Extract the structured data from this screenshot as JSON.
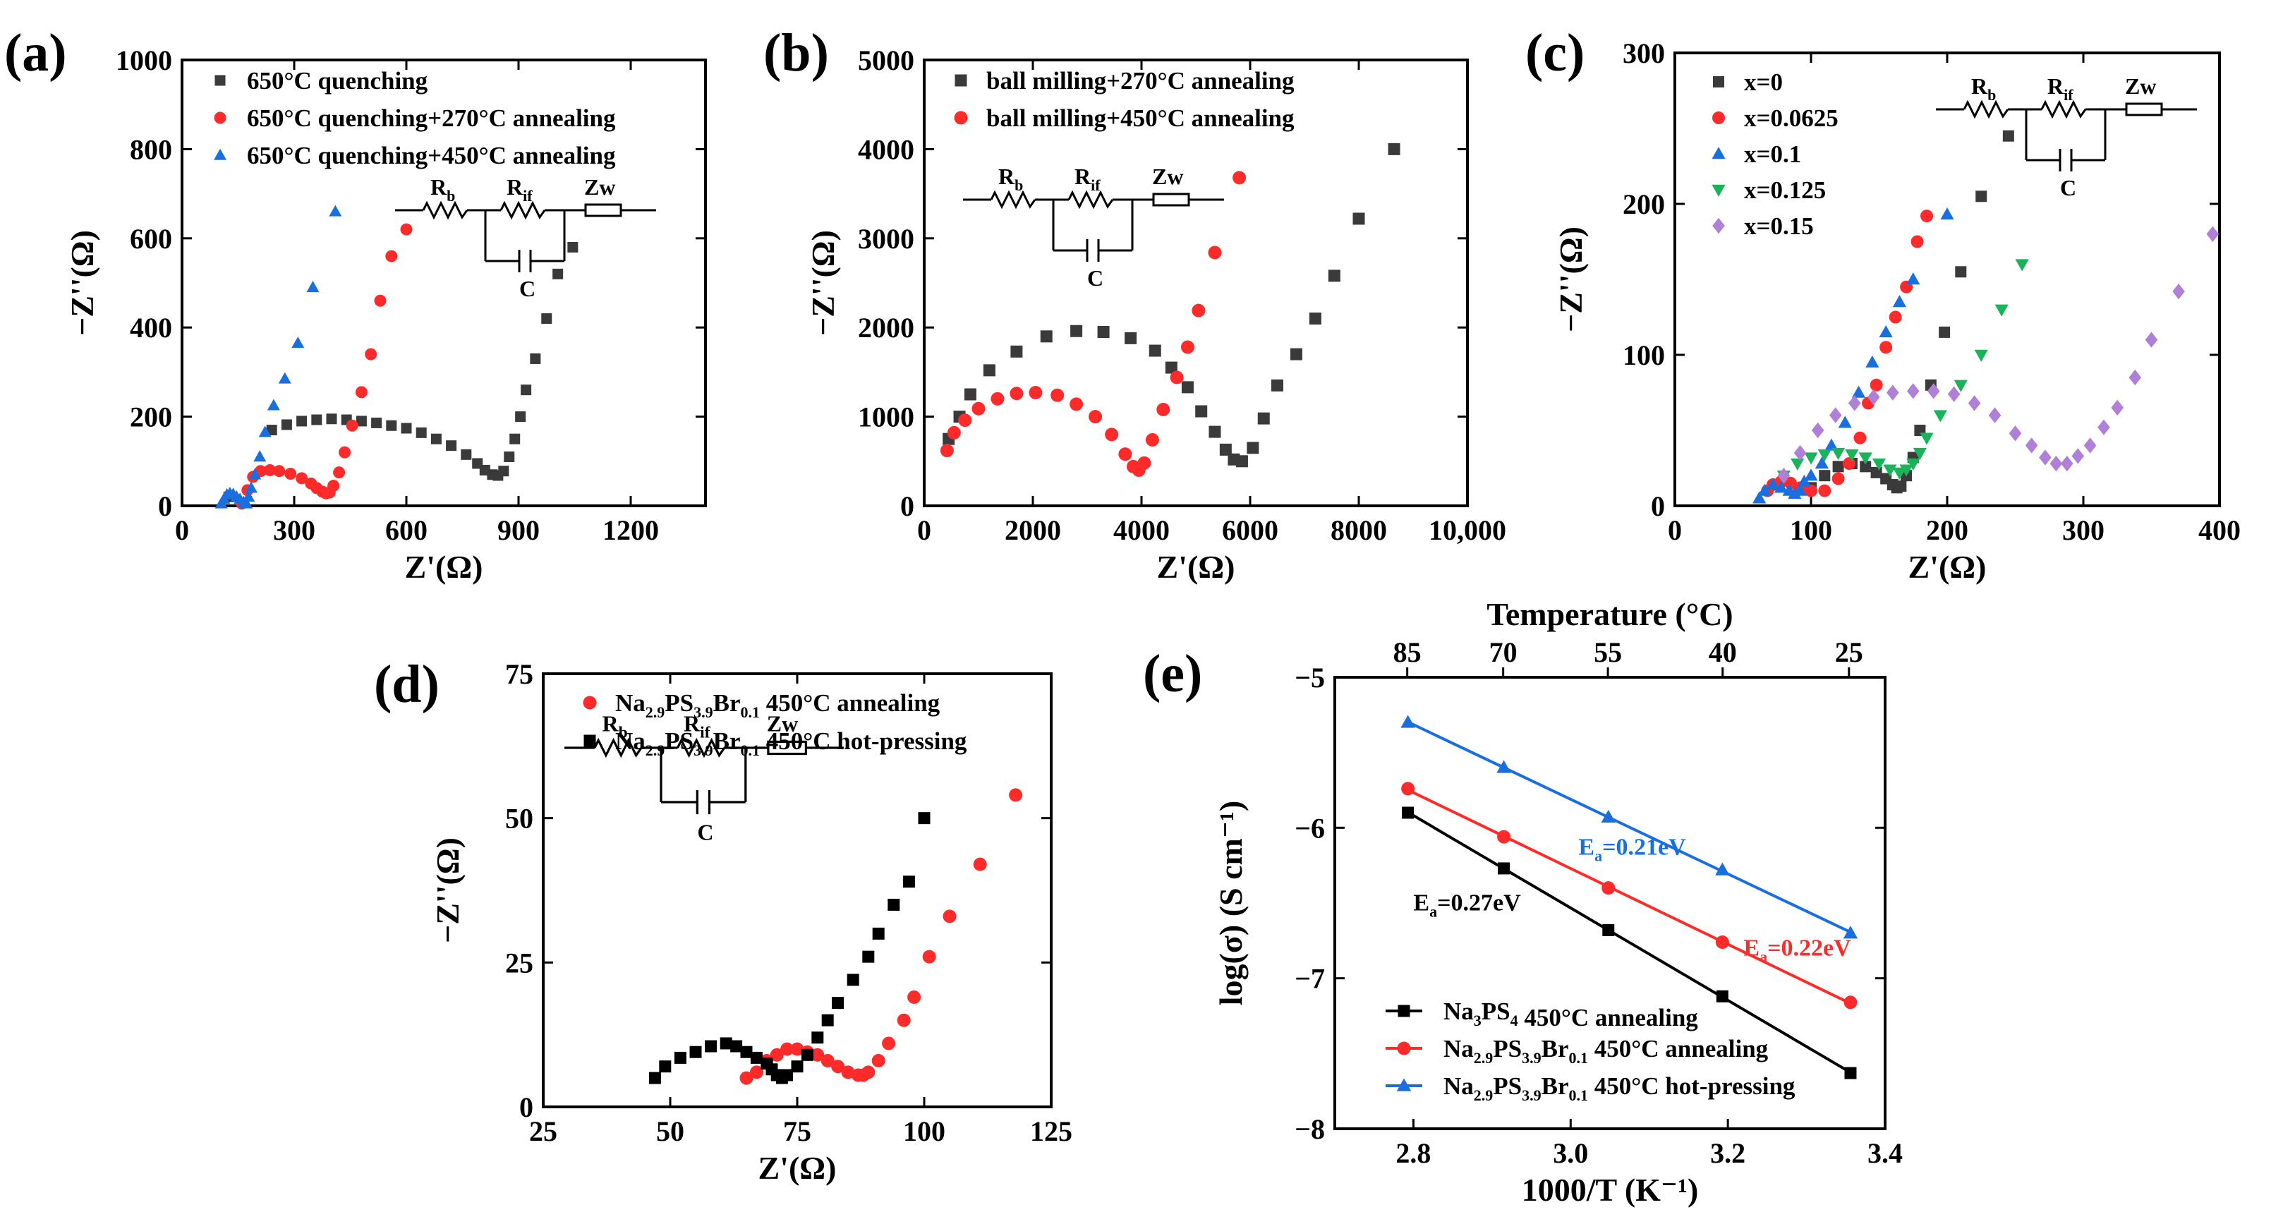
{
  "panels": [
    {
      "letter": "(a)",
      "chart_data": {
        "type": "scatter",
        "xlabel": "Z'(Ω)",
        "ylabel": "−Z''(Ω)",
        "xlim": [
          0,
          1400
        ],
        "ylim": [
          0,
          1000
        ],
        "xticks": [
          0,
          300,
          600,
          900,
          1200
        ],
        "xtick_labels": [
          "0",
          "300",
          "600",
          "900",
          "1200"
        ],
        "yticks": [
          0,
          200,
          400,
          600,
          800,
          1000
        ],
        "ytick_labels": [
          "0",
          "200",
          "400",
          "600",
          "800",
          "1000"
        ],
        "legend_position": "top-left",
        "circuit": {
          "labels": [
            "R",
            "b",
            "R",
            "if",
            "Zw",
            "C"
          ]
        },
        "series": [
          {
            "name": "650°C quenching",
            "marker": "square",
            "color": "#3a3a3a",
            "x": [
              125,
              240,
              280,
              320,
              360,
              400,
              440,
              480,
              520,
              560,
              600,
              640,
              680,
              720,
              760,
              790,
              810,
              830,
              845,
              860,
              875,
              890,
              905,
              920,
              945,
              975,
              1005,
              1045
            ],
            "y": [
              20,
              170,
              182,
              190,
              193,
              195,
              193,
              190,
              186,
              180,
              174,
              164,
              150,
              135,
              115,
              95,
              80,
              70,
              68,
              78,
              110,
              150,
              200,
              260,
              330,
              420,
              520,
              580
            ]
          },
          {
            "name": "650°C quenching+270°C annealing",
            "marker": "circle",
            "color": "#ff2a2a",
            "x": [
              160,
              175,
              190,
              210,
              235,
              260,
              290,
              320,
              345,
              360,
              375,
              385,
              395,
              405,
              420,
              435,
              455,
              480,
              505,
              530,
              560,
              600
            ],
            "y": [
              5,
              35,
              65,
              78,
              80,
              78,
              72,
              62,
              50,
              40,
              32,
              28,
              30,
              45,
              75,
              120,
              180,
              255,
              340,
              460,
              560,
              620
            ]
          },
          {
            "name": "650°C quenching+450°C annealing",
            "marker": "triangle",
            "color": "#1a6fe0",
            "x": [
              105,
              112,
              120,
              128,
              137,
              146,
              155,
              165,
              172,
              178,
              185,
              195,
              208,
              222,
              245,
              275,
              310,
              350,
              410
            ],
            "y": [
              5,
              15,
              25,
              28,
              26,
              20,
              15,
              8,
              5,
              20,
              40,
              70,
              110,
              165,
              225,
              285,
              365,
              490,
              660
            ]
          }
        ]
      }
    },
    {
      "letter": "(b)",
      "chart_data": {
        "type": "scatter",
        "xlabel": "Z'(Ω)",
        "ylabel": "−Z''(Ω)",
        "xlim": [
          0,
          10000
        ],
        "ylim": [
          0,
          5000
        ],
        "xticks": [
          0,
          2000,
          4000,
          6000,
          8000,
          10000
        ],
        "xtick_labels": [
          "0",
          "2000",
          "4000",
          "6000",
          "8000",
          "10,000"
        ],
        "yticks": [
          0,
          1000,
          2000,
          3000,
          4000,
          5000
        ],
        "ytick_labels": [
          "0",
          "1000",
          "2000",
          "3000",
          "4000",
          "5000"
        ],
        "legend_position": "top-left",
        "circuit": {
          "labels": [
            "R",
            "b",
            "R",
            "if",
            "Zw",
            "C"
          ]
        },
        "series": [
          {
            "name": "ball milling+270°C annealing",
            "marker": "square",
            "color": "#3a3a3a",
            "x": [
              450,
              650,
              850,
              1200,
              1700,
              2250,
              2800,
              3300,
              3800,
              4250,
              4550,
              4850,
              5100,
              5350,
              5550,
              5700,
              5850,
              6050,
              6250,
              6500,
              6850,
              7200,
              7550,
              8000,
              8650
            ],
            "y": [
              750,
              1000,
              1250,
              1520,
              1730,
              1900,
              1960,
              1950,
              1880,
              1740,
              1550,
              1330,
              1060,
              830,
              630,
              520,
              500,
              650,
              980,
              1350,
              1700,
              2100,
              2580,
              3220,
              4000
            ]
          },
          {
            "name": "ball milling+450°C annealing",
            "marker": "circle",
            "color": "#ff2a2a",
            "x": [
              420,
              550,
              750,
              1000,
              1350,
              1700,
              2050,
              2450,
              2800,
              3150,
              3450,
              3700,
              3850,
              3950,
              4050,
              4200,
              4400,
              4650,
              4850,
              5050,
              5350,
              5800
            ],
            "y": [
              620,
              820,
              960,
              1090,
              1200,
              1260,
              1270,
              1240,
              1140,
              1000,
              800,
              580,
              440,
              400,
              480,
              740,
              1080,
              1440,
              1780,
              2190,
              2840,
              3680
            ]
          }
        ]
      }
    },
    {
      "letter": "(c)",
      "chart_data": {
        "type": "scatter",
        "xlabel": "Z'(Ω)",
        "ylabel": "−Z''(Ω)",
        "xlim": [
          0,
          400
        ],
        "ylim": [
          0,
          300
        ],
        "xticks": [
          0,
          100,
          200,
          300,
          400
        ],
        "xtick_labels": [
          "0",
          "100",
          "200",
          "300",
          "400"
        ],
        "yticks": [
          0,
          100,
          200,
          300
        ],
        "ytick_labels": [
          "0",
          "100",
          "200",
          "300"
        ],
        "legend_position": "top-left",
        "circuit": {
          "labels": [
            "R",
            "b",
            "R",
            "if",
            "Zw",
            "C"
          ]
        },
        "series": [
          {
            "name": "x=0",
            "marker": "square",
            "color": "#3a3a3a",
            "x": [
              100,
              110,
              120,
              130,
              140,
              148,
              155,
              160,
              163,
              166,
              170,
              175,
              180,
              188,
              198,
              210,
              225,
              245
            ],
            "y": [
              12,
              20,
              26,
              28,
              26,
              22,
              18,
              14,
              12,
              13,
              20,
              32,
              50,
              80,
              115,
              155,
              205,
              245
            ]
          },
          {
            "name": "x=0.0625",
            "marker": "circle",
            "color": "#ff2a2a",
            "x": [
              68,
              72,
              78,
              85,
              92,
              100,
              110,
              120,
              128,
              136,
              142,
              148,
              155,
              162,
              170,
              178,
              185
            ],
            "y": [
              10,
              14,
              16,
              15,
              12,
              10,
              10,
              18,
              28,
              45,
              68,
              80,
              105,
              125,
              145,
              175,
              192
            ]
          },
          {
            "name": "x=0.1",
            "marker": "triangle",
            "color": "#1a6fe0",
            "x": [
              62,
              66,
              72,
              78,
              84,
              88,
              92,
              95,
              100,
              108,
              115,
              125,
              135,
              145,
              155,
              165,
              175,
              200
            ],
            "y": [
              5,
              10,
              14,
              12,
              10,
              8,
              10,
              16,
              20,
              28,
              40,
              55,
              75,
              95,
              115,
              135,
              150,
              193
            ]
          },
          {
            "name": "x=0.125",
            "marker": "triangle-down",
            "color": "#19b35a",
            "x": [
              80,
              90,
              100,
              110,
              120,
              130,
              140,
              150,
              158,
              165,
              170,
              175,
              180,
              185,
              195,
              210,
              225,
              240,
              255
            ],
            "y": [
              20,
              28,
              32,
              34,
              35,
              34,
              32,
              28,
              24,
              22,
              24,
              28,
              35,
              45,
              60,
              80,
              100,
              130,
              160
            ]
          },
          {
            "name": "x=0.15",
            "marker": "diamond",
            "color": "#b07fd8",
            "x": [
              80,
              92,
              105,
              118,
              132,
              146,
              160,
              175,
              190,
              205,
              220,
              235,
              250,
              262,
              272,
              280,
              288,
              296,
              305,
              315,
              325,
              338,
              350,
              370,
              395
            ],
            "y": [
              20,
              35,
              50,
              60,
              68,
              72,
              75,
              76,
              76,
              74,
              68,
              60,
              48,
              40,
              32,
              28,
              28,
              33,
              40,
              52,
              65,
              85,
              110,
              142,
              180
            ]
          }
        ]
      }
    },
    {
      "letter": "(d)",
      "chart_data": {
        "type": "scatter",
        "xlabel": "Z'(Ω)",
        "ylabel": "−Z''(Ω)",
        "xlim": [
          25,
          125
        ],
        "ylim": [
          0,
          75
        ],
        "xticks": [
          25,
          50,
          75,
          100,
          125
        ],
        "xtick_labels": [
          "25",
          "50",
          "75",
          "100",
          "125"
        ],
        "yticks": [
          0,
          25,
          50,
          75
        ],
        "ytick_labels": [
          "0",
          "25",
          "50",
          "75"
        ],
        "legend_position": "top-left",
        "circuit": {
          "labels": [
            "R",
            "b",
            "R",
            "if",
            "Zw",
            "C"
          ]
        },
        "series": [
          {
            "name_parts": [
              "Na",
              "2.9",
              "PS",
              "3.9",
              "Br",
              "0.1",
              " 450°C annealing"
            ],
            "marker": "circle",
            "color": "#ff2a2a",
            "x": [
              65,
              67,
              69,
              71,
              73,
              75,
              77,
              79,
              81,
              83,
              85,
              87,
              88,
              89,
              91,
              93,
              96,
              98,
              101,
              105,
              111,
              118
            ],
            "y": [
              5,
              6,
              8,
              9,
              10,
              10,
              9.5,
              9,
              8,
              7,
              6,
              5.5,
              5.5,
              6,
              8,
              11,
              15,
              19,
              26,
              33,
              42,
              54
            ]
          },
          {
            "name_parts": [
              "Na",
              "2.9",
              "PS",
              "3.9",
              "Br",
              "0.1",
              " 450°C hot-pressing"
            ],
            "marker": "square",
            "color": "#000000",
            "x": [
              47,
              49,
              52,
              55,
              58,
              61,
              63,
              65,
              67,
              69,
              70,
              71,
              72,
              73,
              75,
              77,
              79,
              81,
              83,
              86,
              89,
              91,
              94,
              97,
              100
            ],
            "y": [
              5,
              7,
              8.5,
              9.5,
              10.5,
              11,
              10.5,
              9.5,
              8.5,
              7.5,
              6.5,
              5.5,
              5,
              5.5,
              7,
              9,
              12,
              15,
              18,
              22,
              26,
              30,
              35,
              39,
              50
            ]
          }
        ]
      }
    },
    {
      "letter": "(e)",
      "chart_data": {
        "type": "line",
        "xlabel": "1000/T (K⁻¹)",
        "ylabel": "log(σ) (S cm⁻¹)",
        "top_axis_label": "Temperature (°C)",
        "top_ticks_C": [
          85,
          70,
          55,
          40,
          25
        ],
        "top_tick_labels": [
          "85",
          "70",
          "55",
          "40",
          "25"
        ],
        "xlim": [
          2.7,
          3.4
        ],
        "ylim": [
          -8,
          -5
        ],
        "xticks": [
          2.8,
          3.0,
          3.2,
          3.4
        ],
        "xtick_labels": [
          "2.8",
          "3.0",
          "3.2",
          "3.4"
        ],
        "yticks": [
          -8,
          -7,
          -6,
          -5
        ],
        "ytick_labels": [
          "−8",
          "−7",
          "−6",
          "−5"
        ],
        "legend_position": "bottom-left",
        "annotations": [
          {
            "base": "E",
            "sub": "a",
            "rest": "=0.27eV",
            "color": "#000000",
            "at": [
              2.8,
              -6.55
            ]
          },
          {
            "base": "E",
            "sub": "a",
            "rest": "=0.22eV",
            "color": "#ff2a2a",
            "at": [
              3.22,
              -6.85
            ]
          },
          {
            "base": "E",
            "sub": "a",
            "rest": "=0.21eV",
            "color": "#1a6fe0",
            "at": [
              3.01,
              -6.18
            ]
          }
        ],
        "series": [
          {
            "name_parts": [
              "Na",
              "3",
              "PS",
              "4",
              "",
              "",
              " 450°C annealing"
            ],
            "marker": "square",
            "color": "#000000",
            "x": [
              2.793,
              2.915,
              3.048,
              3.193,
              3.356
            ],
            "y": [
              -5.9,
              -6.27,
              -6.68,
              -7.12,
              -7.63
            ]
          },
          {
            "name_parts": [
              "Na",
              "2.9",
              "PS",
              "3.9",
              "Br",
              "0.1",
              " 450°C annealing"
            ],
            "marker": "circle",
            "color": "#ff2a2a",
            "x": [
              2.793,
              2.915,
              3.048,
              3.193,
              3.356
            ],
            "y": [
              -5.74,
              -6.06,
              -6.4,
              -6.76,
              -7.16
            ]
          },
          {
            "name_parts": [
              "Na",
              "2.9",
              "PS",
              "3.9",
              "Br",
              "0.1",
              " 450°C hot-pressing"
            ],
            "marker": "triangle",
            "color": "#1a6fe0",
            "x": [
              2.793,
              2.915,
              3.048,
              3.193,
              3.356
            ],
            "y": [
              -5.3,
              -5.6,
              -5.93,
              -6.28,
              -6.7
            ]
          }
        ]
      }
    }
  ]
}
